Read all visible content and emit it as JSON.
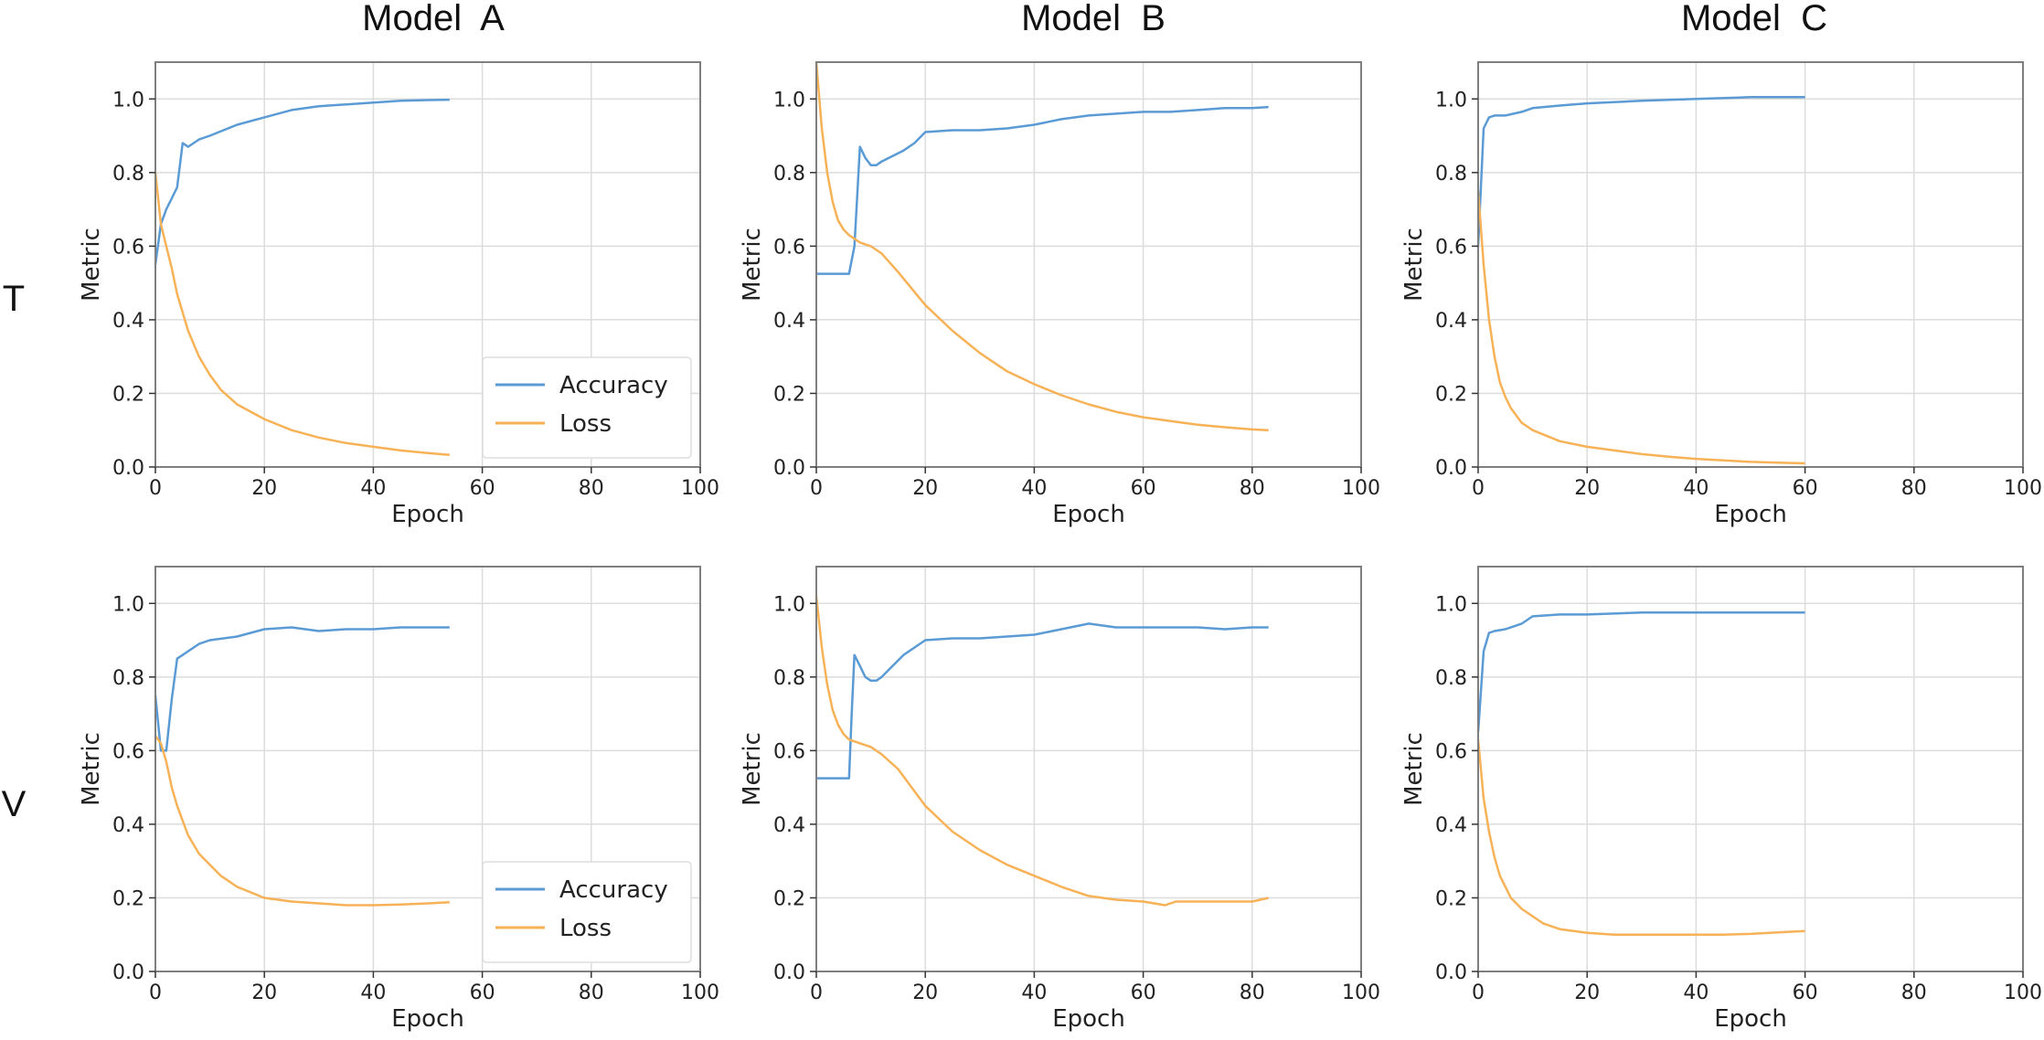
{
  "column_titles": [
    "Model  A",
    "Model  B",
    "Model  C"
  ],
  "row_labels": [
    "T",
    "V"
  ],
  "colors": {
    "accuracy": "#5b9bd5",
    "loss": "#f7b257",
    "grid": "#dcdcdc",
    "frame": "#7f7f7f"
  },
  "chart_data": [
    {
      "type": "line",
      "row": "T",
      "column": "Model  A",
      "xlabel": "Epoch",
      "ylabel": "Metric",
      "xlim": [
        0,
        100
      ],
      "ylim": [
        0,
        1.1
      ],
      "xticks": [
        0,
        20,
        40,
        60,
        80,
        100
      ],
      "yticks": [
        0.0,
        0.2,
        0.4,
        0.6,
        0.8,
        1.0
      ],
      "xtick_labels": [
        "0",
        "20",
        "40",
        "60",
        "80",
        "100"
      ],
      "ytick_labels": [
        "0.0",
        "0.2",
        "0.4",
        "0.6",
        "0.8",
        "1.0"
      ],
      "grid": true,
      "legend": "lower-right",
      "series": [
        {
          "name": "Accuracy",
          "color": "#5b9bd5",
          "x": [
            0,
            1,
            2,
            3,
            4,
            5,
            6,
            8,
            10,
            15,
            20,
            25,
            30,
            35,
            40,
            45,
            50,
            54
          ],
          "y": [
            0.55,
            0.66,
            0.7,
            0.73,
            0.76,
            0.88,
            0.87,
            0.89,
            0.9,
            0.93,
            0.95,
            0.97,
            0.98,
            0.985,
            0.99,
            0.995,
            0.997,
            0.998
          ]
        },
        {
          "name": "Loss",
          "color": "#f7b257",
          "x": [
            0,
            1,
            2,
            3,
            4,
            5,
            6,
            8,
            10,
            12,
            15,
            20,
            25,
            30,
            35,
            40,
            45,
            50,
            54
          ],
          "y": [
            0.8,
            0.66,
            0.6,
            0.54,
            0.47,
            0.42,
            0.37,
            0.3,
            0.25,
            0.21,
            0.17,
            0.13,
            0.1,
            0.08,
            0.065,
            0.055,
            0.045,
            0.038,
            0.033
          ]
        }
      ]
    },
    {
      "type": "line",
      "row": "T",
      "column": "Model  B",
      "xlabel": "Epoch",
      "ylabel": "Metric",
      "xlim": [
        0,
        100
      ],
      "ylim": [
        0,
        1.1
      ],
      "xticks": [
        0,
        20,
        40,
        60,
        80,
        100
      ],
      "yticks": [
        0.0,
        0.2,
        0.4,
        0.6,
        0.8,
        1.0
      ],
      "xtick_labels": [
        "0",
        "20",
        "40",
        "60",
        "80",
        "100"
      ],
      "ytick_labels": [
        "0.0",
        "0.2",
        "0.4",
        "0.6",
        "0.8",
        "1.0"
      ],
      "grid": true,
      "legend": "none",
      "series": [
        {
          "name": "Accuracy",
          "color": "#5b9bd5",
          "x": [
            0,
            3,
            6,
            7,
            8,
            9,
            10,
            11,
            12,
            14,
            16,
            18,
            20,
            25,
            30,
            35,
            40,
            45,
            50,
            55,
            60,
            65,
            70,
            75,
            80,
            83
          ],
          "y": [
            0.525,
            0.525,
            0.525,
            0.6,
            0.87,
            0.84,
            0.82,
            0.82,
            0.83,
            0.845,
            0.86,
            0.88,
            0.91,
            0.915,
            0.915,
            0.92,
            0.93,
            0.945,
            0.955,
            0.96,
            0.965,
            0.965,
            0.97,
            0.975,
            0.975,
            0.978
          ]
        },
        {
          "name": "Loss",
          "color": "#f7b257",
          "x": [
            0,
            1,
            2,
            3,
            4,
            5,
            6,
            7,
            8,
            10,
            12,
            15,
            20,
            25,
            30,
            35,
            40,
            45,
            50,
            55,
            60,
            65,
            70,
            75,
            80,
            83
          ],
          "y": [
            1.1,
            0.92,
            0.8,
            0.72,
            0.67,
            0.645,
            0.63,
            0.62,
            0.61,
            0.6,
            0.58,
            0.53,
            0.44,
            0.37,
            0.31,
            0.26,
            0.225,
            0.195,
            0.17,
            0.15,
            0.135,
            0.125,
            0.115,
            0.108,
            0.102,
            0.1
          ]
        }
      ]
    },
    {
      "type": "line",
      "row": "T",
      "column": "Model  C",
      "xlabel": "Epoch",
      "ylabel": "Metric",
      "xlim": [
        0,
        100
      ],
      "ylim": [
        0,
        1.1
      ],
      "xticks": [
        0,
        20,
        40,
        60,
        80,
        100
      ],
      "yticks": [
        0.0,
        0.2,
        0.4,
        0.6,
        0.8,
        1.0
      ],
      "xtick_labels": [
        "0",
        "20",
        "40",
        "60",
        "80",
        "100"
      ],
      "ytick_labels": [
        "0.0",
        "0.2",
        "0.4",
        "0.6",
        "0.8",
        "1.0"
      ],
      "grid": true,
      "legend": "none",
      "series": [
        {
          "name": "Accuracy",
          "color": "#5b9bd5",
          "x": [
            0,
            1,
            2,
            3,
            5,
            8,
            10,
            15,
            20,
            30,
            40,
            50,
            60
          ],
          "y": [
            0.6,
            0.92,
            0.95,
            0.955,
            0.955,
            0.965,
            0.975,
            0.982,
            0.988,
            0.995,
            1.0,
            1.005,
            1.005
          ]
        },
        {
          "name": "Loss",
          "color": "#f7b257",
          "x": [
            0,
            1,
            2,
            3,
            4,
            5,
            6,
            8,
            10,
            15,
            20,
            25,
            30,
            35,
            40,
            45,
            50,
            55,
            60
          ],
          "y": [
            0.75,
            0.55,
            0.4,
            0.3,
            0.23,
            0.19,
            0.16,
            0.12,
            0.1,
            0.07,
            0.055,
            0.045,
            0.035,
            0.028,
            0.022,
            0.018,
            0.014,
            0.012,
            0.01
          ]
        }
      ]
    },
    {
      "type": "line",
      "row": "V",
      "column": "Model  A",
      "xlabel": "Epoch",
      "ylabel": "Metric",
      "xlim": [
        0,
        100
      ],
      "ylim": [
        0,
        1.1
      ],
      "xticks": [
        0,
        20,
        40,
        60,
        80,
        100
      ],
      "yticks": [
        0.0,
        0.2,
        0.4,
        0.6,
        0.8,
        1.0
      ],
      "xtick_labels": [
        "0",
        "20",
        "40",
        "60",
        "80",
        "100"
      ],
      "ytick_labels": [
        "0.0",
        "0.2",
        "0.4",
        "0.6",
        "0.8",
        "1.0"
      ],
      "grid": true,
      "legend": "lower-right",
      "series": [
        {
          "name": "Accuracy",
          "color": "#5b9bd5",
          "x": [
            0,
            1,
            2,
            3,
            4,
            5,
            8,
            10,
            15,
            20,
            25,
            30,
            35,
            40,
            45,
            50,
            54
          ],
          "y": [
            0.75,
            0.6,
            0.6,
            0.74,
            0.85,
            0.86,
            0.89,
            0.9,
            0.91,
            0.93,
            0.935,
            0.925,
            0.93,
            0.93,
            0.935,
            0.935,
            0.935
          ]
        },
        {
          "name": "Loss",
          "color": "#f7b257",
          "x": [
            0,
            1,
            2,
            3,
            4,
            5,
            6,
            8,
            10,
            12,
            15,
            20,
            25,
            30,
            35,
            40,
            45,
            50,
            54
          ],
          "y": [
            0.64,
            0.62,
            0.57,
            0.5,
            0.45,
            0.41,
            0.37,
            0.32,
            0.29,
            0.26,
            0.23,
            0.2,
            0.19,
            0.185,
            0.18,
            0.18,
            0.182,
            0.185,
            0.188
          ]
        }
      ]
    },
    {
      "type": "line",
      "row": "V",
      "column": "Model  B",
      "xlabel": "Epoch",
      "ylabel": "Metric",
      "xlim": [
        0,
        100
      ],
      "ylim": [
        0,
        1.1
      ],
      "xticks": [
        0,
        20,
        40,
        60,
        80,
        100
      ],
      "yticks": [
        0.0,
        0.2,
        0.4,
        0.6,
        0.8,
        1.0
      ],
      "xtick_labels": [
        "0",
        "20",
        "40",
        "60",
        "80",
        "100"
      ],
      "ytick_labels": [
        "0.0",
        "0.2",
        "0.4",
        "0.6",
        "0.8",
        "1.0"
      ],
      "grid": true,
      "legend": "none",
      "series": [
        {
          "name": "Accuracy",
          "color": "#5b9bd5",
          "x": [
            0,
            3,
            6,
            6.5,
            7,
            8,
            9,
            10,
            11,
            12,
            14,
            16,
            18,
            20,
            25,
            30,
            35,
            40,
            45,
            50,
            55,
            60,
            65,
            70,
            75,
            80,
            83
          ],
          "y": [
            0.525,
            0.525,
            0.525,
            0.7,
            0.86,
            0.83,
            0.8,
            0.79,
            0.79,
            0.8,
            0.83,
            0.86,
            0.88,
            0.9,
            0.905,
            0.905,
            0.91,
            0.915,
            0.93,
            0.945,
            0.935,
            0.935,
            0.935,
            0.935,
            0.93,
            0.935,
            0.935
          ]
        },
        {
          "name": "Loss",
          "color": "#f7b257",
          "x": [
            0,
            1,
            2,
            3,
            4,
            5,
            6,
            7,
            8,
            10,
            12,
            15,
            20,
            25,
            30,
            35,
            40,
            45,
            50,
            55,
            60,
            62,
            64,
            66,
            70,
            75,
            80,
            83
          ],
          "y": [
            1.02,
            0.88,
            0.78,
            0.71,
            0.67,
            0.645,
            0.63,
            0.625,
            0.62,
            0.61,
            0.59,
            0.55,
            0.45,
            0.38,
            0.33,
            0.29,
            0.26,
            0.23,
            0.205,
            0.195,
            0.19,
            0.185,
            0.18,
            0.19,
            0.19,
            0.19,
            0.19,
            0.2
          ]
        }
      ]
    },
    {
      "type": "line",
      "row": "V",
      "column": "Model  C",
      "xlabel": "Epoch",
      "ylabel": "Metric",
      "xlim": [
        0,
        100
      ],
      "ylim": [
        0,
        1.1
      ],
      "xticks": [
        0,
        20,
        40,
        60,
        80,
        100
      ],
      "yticks": [
        0.0,
        0.2,
        0.4,
        0.6,
        0.8,
        1.0
      ],
      "xtick_labels": [
        "0",
        "20",
        "40",
        "60",
        "80",
        "100"
      ],
      "ytick_labels": [
        "0.0",
        "0.2",
        "0.4",
        "0.6",
        "0.8",
        "1.0"
      ],
      "grid": true,
      "legend": "none",
      "series": [
        {
          "name": "Accuracy",
          "color": "#5b9bd5",
          "x": [
            0,
            1,
            2,
            3,
            5,
            8,
            10,
            15,
            20,
            30,
            40,
            50,
            60
          ],
          "y": [
            0.65,
            0.87,
            0.92,
            0.925,
            0.93,
            0.945,
            0.965,
            0.97,
            0.97,
            0.975,
            0.975,
            0.975,
            0.975
          ]
        },
        {
          "name": "Loss",
          "color": "#f7b257",
          "x": [
            0,
            1,
            2,
            3,
            4,
            5,
            6,
            8,
            10,
            12,
            15,
            20,
            25,
            30,
            35,
            40,
            45,
            50,
            55,
            60
          ],
          "y": [
            0.63,
            0.47,
            0.38,
            0.31,
            0.26,
            0.23,
            0.2,
            0.17,
            0.15,
            0.13,
            0.115,
            0.105,
            0.1,
            0.1,
            0.1,
            0.1,
            0.1,
            0.102,
            0.106,
            0.11
          ]
        }
      ]
    }
  ]
}
